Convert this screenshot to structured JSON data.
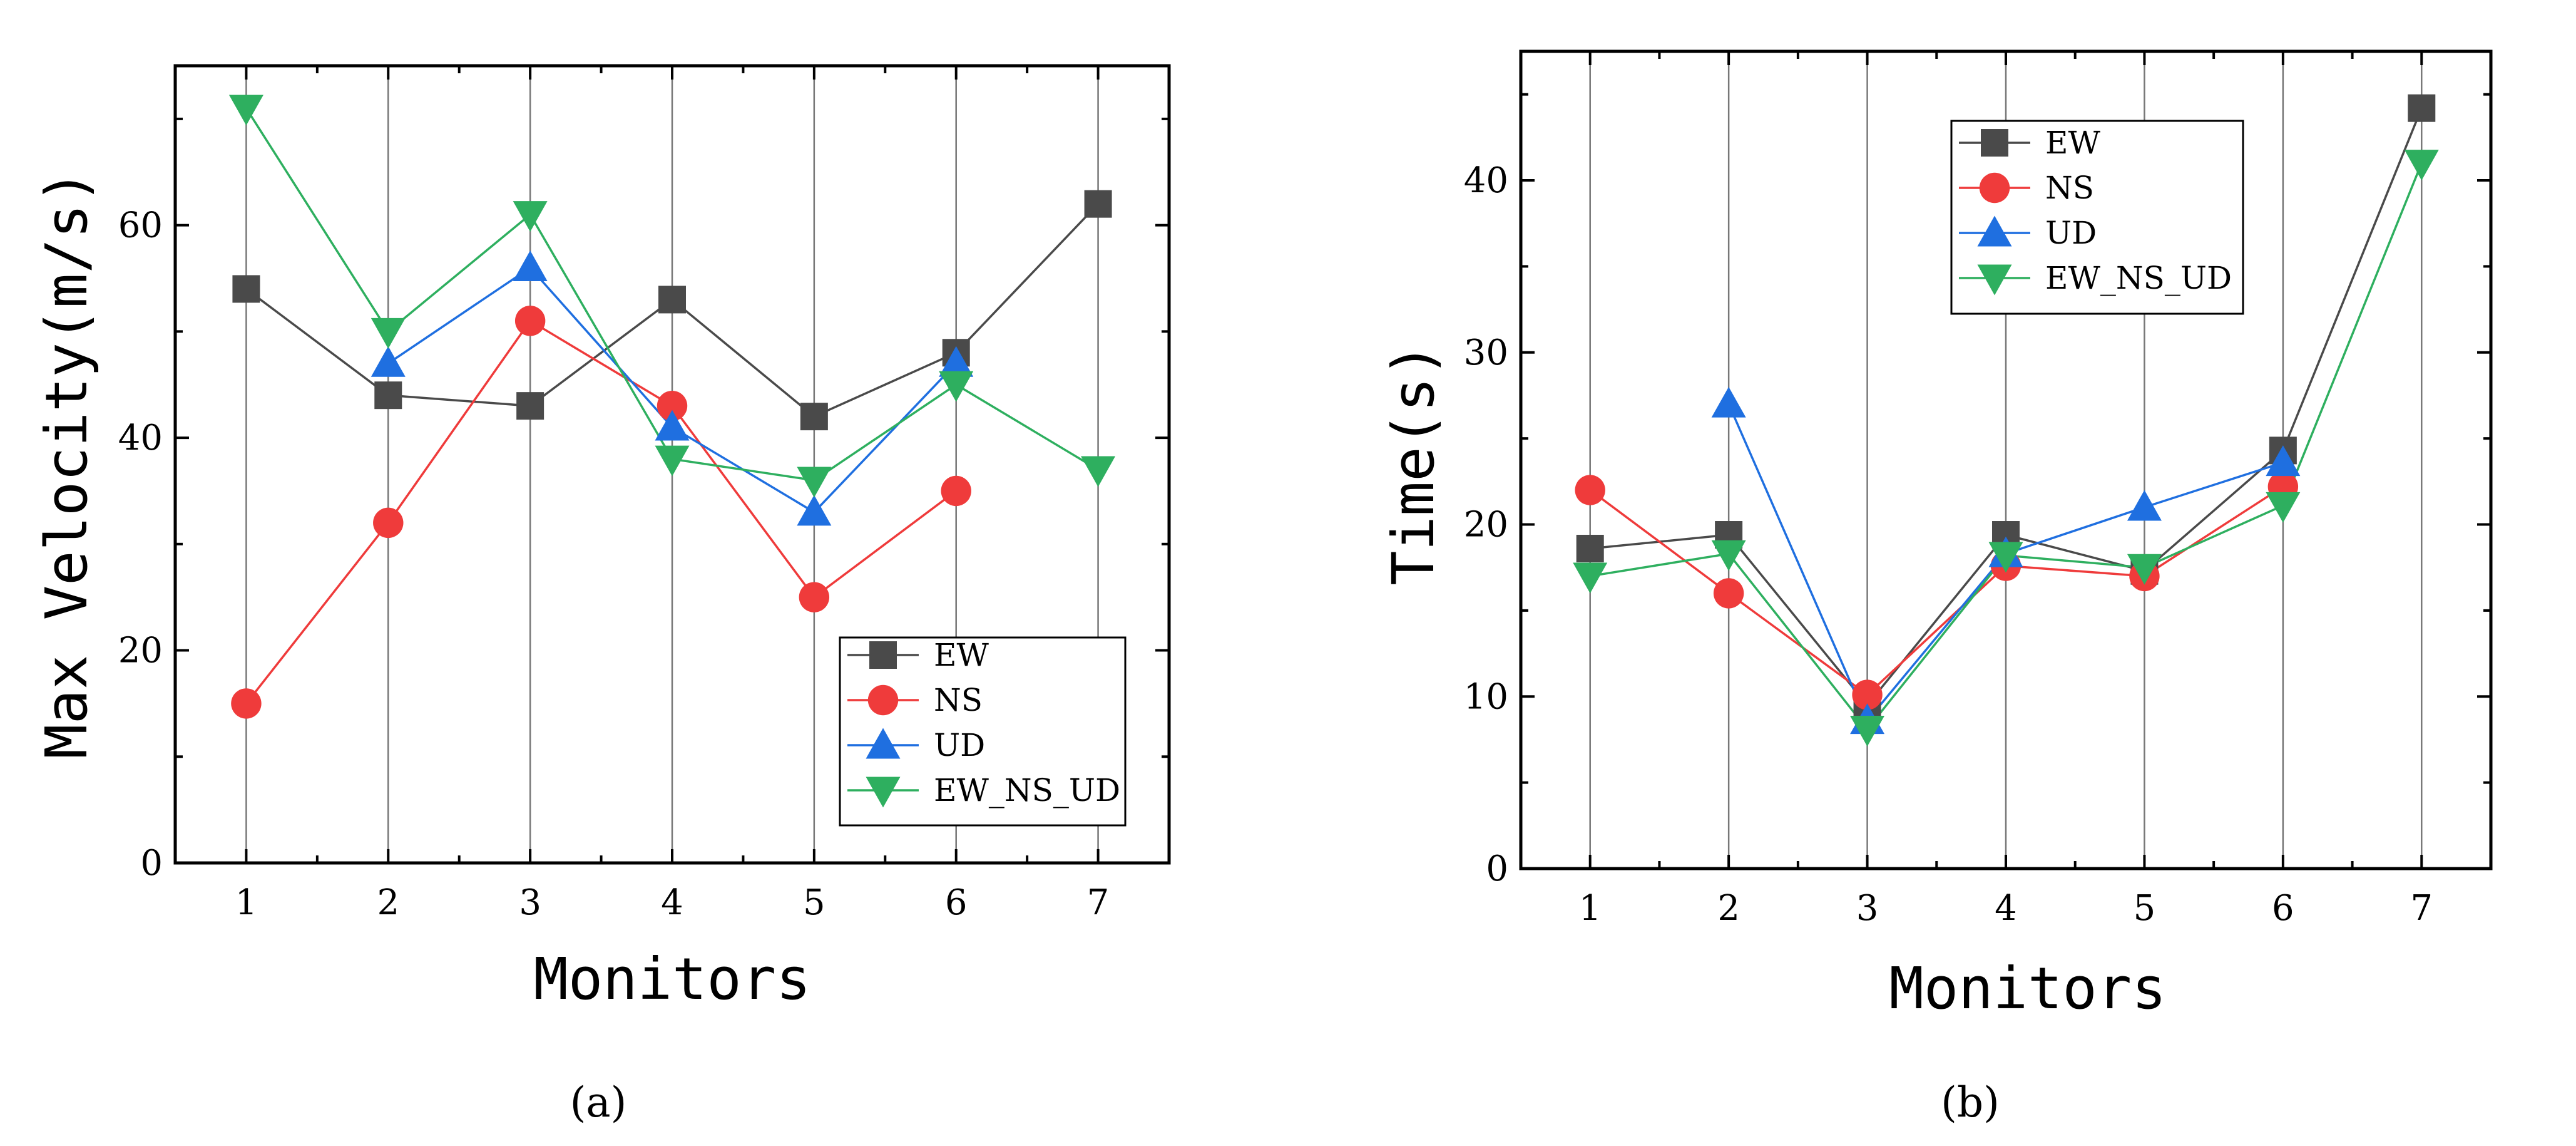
{
  "chart_data": [
    {
      "type": "line",
      "panel_label": "(a)",
      "xlabel": "Monitors",
      "ylabel": "Max Velocity(m/s)",
      "categories": [
        "1",
        "2",
        "3",
        "4",
        "5",
        "6",
        "7"
      ],
      "xlim": [
        0.5,
        7.5
      ],
      "ylim": [
        0,
        75
      ],
      "yticks": [
        "0",
        "20",
        "40",
        "60"
      ],
      "legend_position": "bottom-right",
      "series": [
        {
          "name": "EW",
          "color": "#4a4a4a",
          "marker": "square",
          "values": [
            54,
            44,
            43,
            53,
            42,
            48,
            62
          ]
        },
        {
          "name": "NS",
          "color": "#ef3b3b",
          "marker": "circle",
          "values": [
            15,
            32,
            51,
            43,
            25,
            35,
            null
          ]
        },
        {
          "name": "UD",
          "color": "#1f6fe0",
          "marker": "triangle-up",
          "values": [
            null,
            47,
            56,
            41,
            33,
            47,
            null
          ]
        },
        {
          "name": "EW_NS_UD",
          "color": "#2eaf5f",
          "marker": "triangle-down",
          "values": [
            71,
            50,
            61,
            38,
            36,
            45,
            37
          ]
        }
      ]
    },
    {
      "type": "line",
      "panel_label": "(b)",
      "xlabel": "Monitors",
      "ylabel": "Time(s)",
      "categories": [
        "1",
        "2",
        "3",
        "4",
        "5",
        "6",
        "7"
      ],
      "xlim": [
        0.5,
        7.5
      ],
      "ylim": [
        0,
        47.5
      ],
      "yticks": [
        "0",
        "10",
        "20",
        "30",
        "40"
      ],
      "legend_position": "top-center",
      "series": [
        {
          "name": "EW",
          "color": "#4a4a4a",
          "marker": "square",
          "values": [
            18.6,
            19.4,
            9.5,
            19.4,
            17.3,
            24.3,
            44.2
          ]
        },
        {
          "name": "NS",
          "color": "#ef3b3b",
          "marker": "circle",
          "values": [
            22,
            16,
            10.1,
            17.6,
            17,
            22.2,
            null
          ]
        },
        {
          "name": "UD",
          "color": "#1f6fe0",
          "marker": "triangle-up",
          "values": [
            null,
            27,
            8.6,
            18.3,
            21,
            23.6,
            null
          ]
        },
        {
          "name": "EW_NS_UD",
          "color": "#2eaf5f",
          "marker": "triangle-down",
          "values": [
            17,
            18.3,
            8.1,
            18.2,
            17.5,
            21.1,
            41
          ]
        }
      ]
    }
  ]
}
